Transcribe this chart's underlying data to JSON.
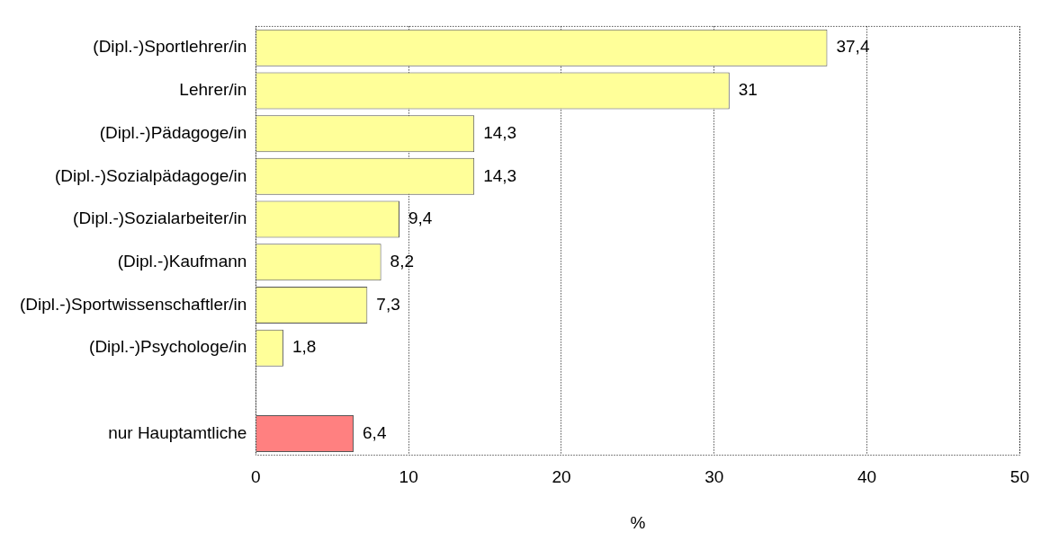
{
  "chart_data": {
    "type": "bar",
    "orientation": "horizontal",
    "xlabel": "%",
    "categories": [
      "(Dipl.-)Sportlehrer/in",
      "Lehrer/in",
      "(Dipl.-)Pädagoge/in",
      "(Dipl.-)Sozialpädagoge/in",
      "(Dipl.-)Sozialarbeiter/in",
      "(Dipl.-)Kaufmann",
      "(Dipl.-)Sportwissenschaftler/in",
      "(Dipl.-)Psychologe/in",
      null,
      "nur Hauptamtliche"
    ],
    "values": [
      37.4,
      31,
      14.3,
      14.3,
      9.4,
      8.2,
      7.3,
      1.8,
      null,
      6.4
    ],
    "value_labels": [
      "37,4",
      "31",
      "14,3",
      "14,3",
      "9,4",
      "8,2",
      "7,3",
      "1,8",
      null,
      "6,4"
    ],
    "colors": [
      "#ffff99",
      "#ffff99",
      "#ffff99",
      "#ffff99",
      "#ffff99",
      "#ffff99",
      "#ffff99",
      "#ffff99",
      null,
      "#ff8080"
    ],
    "xlim": [
      0,
      50
    ],
    "xticks": [
      0,
      10,
      20,
      30,
      40,
      50
    ],
    "grid": "x",
    "legend": false
  }
}
